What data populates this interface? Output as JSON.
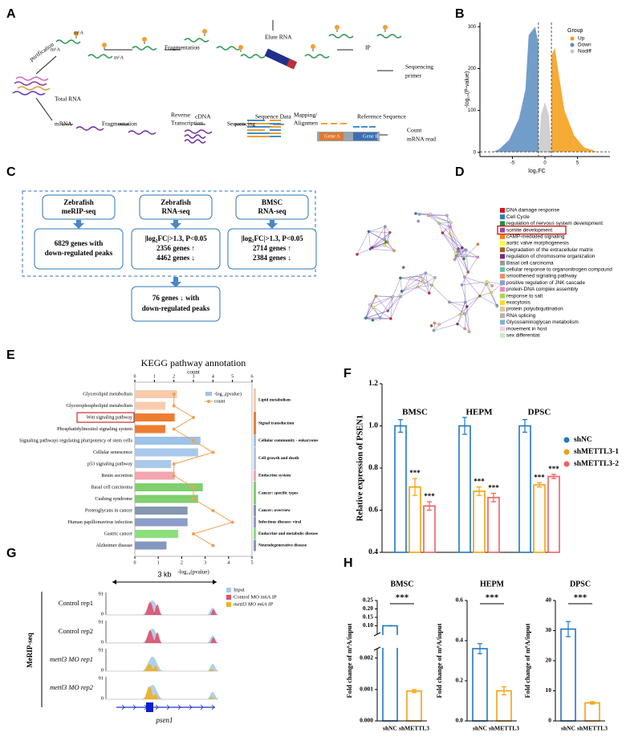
{
  "panel_labels": [
    "A",
    "B",
    "C",
    "D",
    "E",
    "F",
    "G",
    "H"
  ],
  "panel_a": {
    "texts": [
      "purification",
      "m⁶A",
      "m⁶A",
      "m⁶A",
      "Fragmentation",
      "Elute RNA",
      "IP",
      "Sequencing",
      "primer",
      "Total RNA",
      "mRNA",
      "Fragmentation",
      "Reverse",
      "Transcription",
      "cDNA",
      "Sequencing",
      "Sequence Data",
      "Mapping/",
      "Alignmen",
      "Reference Sequence",
      "Gene A",
      "Gene B",
      "Count",
      "mRNA read"
    ]
  },
  "panel_b": {
    "type": "scatter",
    "legend_title": "Group",
    "series": [
      {
        "name": "Up",
        "color": "#f39c12"
      },
      {
        "name": "Down",
        "color": "#5b8cc0"
      },
      {
        "name": "Nodiff",
        "color": "#c8c8c8"
      }
    ],
    "x_label": "log₂FC",
    "y_label": "-log₁₀(P-value)",
    "xlim": [
      -10,
      10
    ],
    "ylim": [
      -10,
      310
    ],
    "xticks": [
      -5,
      0,
      5
    ],
    "yticks": [
      0,
      100,
      200,
      300
    ],
    "threshold_lines": {
      "x": [
        -1,
        1
      ],
      "y": [
        1.3
      ]
    }
  },
  "panel_c": {
    "boxes": [
      {
        "title": [
          "Zebrafish",
          "meRIP-seq"
        ],
        "body": [
          "6829 genes with",
          "down-regulated peaks"
        ]
      },
      {
        "title": [
          "Zebrafish",
          "RNA-seq"
        ],
        "body": [
          "|log₂FC|>1.3, P<0.05",
          "2356 genes ↑",
          "4462 genes ↓"
        ]
      },
      {
        "title": [
          "BMSC",
          "RNA-seq"
        ],
        "body": [
          "|log₂FC|>1.3, P<0.05",
          "2714 genes ↑",
          "2384 genes ↓"
        ]
      }
    ],
    "result": [
      "76 genes ↓ with",
      "down-regulated peaks"
    ]
  },
  "panel_d": {
    "items": [
      {
        "name": "DNA damage response",
        "color": "#d7191c"
      },
      {
        "name": "Cell Cycle",
        "color": "#2c7bb6"
      },
      {
        "name": "regulation of nervous system development",
        "color": "#1a9641"
      },
      {
        "name": "somite development",
        "color": "#984ea3",
        "highlighted": true
      },
      {
        "name": "cAMP-mediated signaling",
        "color": "#ff7f00"
      },
      {
        "name": "aortic valve morphogenesis",
        "color": "#ffff33"
      },
      {
        "name": "Degradation of the extracellular matrix",
        "color": "#a6611a"
      },
      {
        "name": "regulation of chromosome organization",
        "color": "#762a83"
      },
      {
        "name": "Basal cell carcinoma",
        "color": "#999999"
      },
      {
        "name": "cellular response to organonitrogen compound",
        "color": "#66c2a5"
      },
      {
        "name": "smoothened signaling pathway",
        "color": "#fc8d62"
      },
      {
        "name": "positive regulation of JNK cascade",
        "color": "#8da0cb"
      },
      {
        "name": "protein-DNA complex assembly",
        "color": "#e78ac3"
      },
      {
        "name": "response to salt",
        "color": "#a6d854"
      },
      {
        "name": "exocytosis",
        "color": "#ffd92f"
      },
      {
        "name": "protein polyubiquitination",
        "color": "#e5c494"
      },
      {
        "name": "RNA splicing",
        "color": "#b3b3b3"
      },
      {
        "name": "Glycosaminoglycan metabolism",
        "color": "#80b1d3"
      },
      {
        "name": "movement in host",
        "color": "#fccde5"
      },
      {
        "name": "sex differentiat",
        "color": "#ccebc5"
      }
    ]
  },
  "panel_e": {
    "type": "bar",
    "title": "KEGG pathway annotation",
    "top_axis_label": "count",
    "bottom_axis_label": "-log₁₀(pvalue)",
    "categories": [
      "Glycerolipid metabolism",
      "Glycerophospholipid metabolism",
      "Wnt signaling pathway",
      "Phosphatidylinositol signaling system",
      "Signaling pathways regulating pluripotency of stem cells",
      "Cellular senescence",
      "p53 signaling pathway",
      "Renin secretion",
      "Basal cell carcinoma",
      "Cushing syndrome",
      "Proteoglycans in cancer",
      "Human papillomavirus infection",
      "Gastric cancer",
      "Alzheimer disease"
    ],
    "series": [
      {
        "name": "-log₁₀(pvalue)",
        "color": "#9dc3e6",
        "values": [
          1.8,
          1.3,
          1.7,
          1.3,
          2.8,
          2.7,
          1.55,
          1.7,
          2.9,
          2.7,
          2.25,
          2.25,
          1.85,
          1.35
        ]
      },
      {
        "name": "count",
        "color": "#f0a050",
        "axis": "x2",
        "values": [
          2,
          2,
          3,
          2,
          3,
          4,
          2,
          2,
          3,
          3,
          4,
          5,
          3,
          4
        ]
      }
    ],
    "xlim": [
      0,
      5
    ],
    "xticks": [
      0,
      1,
      2,
      3,
      4,
      5
    ],
    "x2lim": [
      0,
      6
    ],
    "x2ticks": [
      0,
      1,
      2,
      3,
      4,
      5,
      6
    ],
    "groups": [
      {
        "name": "Lipid metabolism",
        "color": "#f8cbad",
        "categories": [
          0,
          1
        ]
      },
      {
        "name": "Signal transduction",
        "color": "#ed7d31",
        "categories": [
          2,
          3
        ]
      },
      {
        "name": "Cellular community - eukaryotes",
        "color": "#9dc3e6",
        "categories": [
          4
        ]
      },
      {
        "name": "Cell growth and death",
        "color": "#a9c9ea",
        "categories": [
          5,
          6
        ]
      },
      {
        "name": "Endocrine system",
        "color": "#f4a6b0",
        "categories": [
          7
        ]
      },
      {
        "name": "Cancer: specific types",
        "color": "#7fcf6f",
        "categories": [
          8,
          9
        ]
      },
      {
        "name": "Cancer: overview",
        "color": "#8497b0",
        "categories": [
          10
        ]
      },
      {
        "name": "Infectious disease: viral",
        "color": "#8b9dc8",
        "categories": [
          11
        ]
      },
      {
        "name": "Endocrine and metabolic disease",
        "color": "#8be07a",
        "categories": [
          12
        ]
      },
      {
        "name": "Neurodegenerative disease",
        "color": "#8497c0",
        "categories": [
          13
        ]
      }
    ]
  },
  "panel_f": {
    "type": "bar",
    "y_label": "Relative expression of PSEN1",
    "categories": [
      "BMSC",
      "HEPM",
      "DPSC"
    ],
    "series": [
      {
        "name": "shNC",
        "color": "#1f77c4",
        "values": [
          1.0,
          1.0,
          1.0
        ],
        "errors": [
          0.03,
          0.04,
          0.03
        ]
      },
      {
        "name": "shMETTL3-1",
        "color": "#f5a00f",
        "values": [
          0.71,
          0.69,
          0.72
        ],
        "errors": [
          0.04,
          0.02,
          0.01
        ],
        "significance": [
          "***",
          "***",
          "***"
        ]
      },
      {
        "name": "shMETTL3-2",
        "color": "#f06060",
        "values": [
          0.62,
          0.66,
          0.76
        ],
        "errors": [
          0.02,
          0.02,
          0.01
        ],
        "significance": [
          "***",
          "***",
          "***"
        ]
      }
    ],
    "ylim": [
      0.4,
      1.2
    ],
    "yticks": [
      0.4,
      0.6,
      0.8,
      {
        "value": 1,
        "label": "1.0"
      },
      1.2
    ]
  },
  "panel_g": {
    "scale": "3 kb",
    "axis_top": "91",
    "axis_bottom": "0",
    "group_label": "MeRIP-seq",
    "tracks": [
      "Control rep1",
      "Control rep2",
      "mettl3 MO rep1",
      "mettl3 MO rep2"
    ],
    "legend": [
      {
        "name": "Input",
        "color": "#a8cbe8"
      },
      {
        "name": "Control MO m6A IP",
        "color": "#e0506e"
      },
      {
        "name": "mettl3 MO m6A IP",
        "color": "#f0b020"
      }
    ],
    "gene": "psen1"
  },
  "panel_h": {
    "type": "bar",
    "y_label": "Fold change of m⁶A/input",
    "colors": [
      "#1f77c4",
      "#f5a00f"
    ],
    "charts": [
      {
        "title": "BMSC",
        "categories": [
          "shNC",
          "shMETTL3"
        ],
        "values": [
          0.1,
          0.00095
        ],
        "errors": [
          0.001,
          5e-05
        ],
        "ylim": [
          0,
          0.25
        ],
        "ybreak": [
          0.0023,
          0.05
        ],
        "yticks": [
          {
            "value": 0,
            "label": "0.000"
          },
          0.001,
          0.002,
          {
            "value": 0.1,
            "label": "0.10"
          },
          0.15,
          {
            "value": 0.2,
            "label": "0.20"
          },
          0.25
        ],
        "significance": "***"
      },
      {
        "title": "HEPM",
        "categories": [
          "shNC",
          "shMETTL3"
        ],
        "values": [
          0.36,
          0.15
        ],
        "errors": [
          0.025,
          0.02
        ],
        "ylim": [
          0,
          0.6
        ],
        "yticks": [
          {
            "value": 0,
            "label": "0.0"
          },
          0.2,
          0.4,
          0.6
        ],
        "significance": "***"
      },
      {
        "title": "DPSC",
        "categories": [
          "shNC",
          "shMETTL3"
        ],
        "values": [
          30.5,
          6
        ],
        "errors": [
          2.5,
          0.4
        ],
        "ylim": [
          0,
          40
        ],
        "yticks": [
          0,
          10,
          20,
          30,
          40
        ],
        "significance": "***"
      }
    ]
  }
}
